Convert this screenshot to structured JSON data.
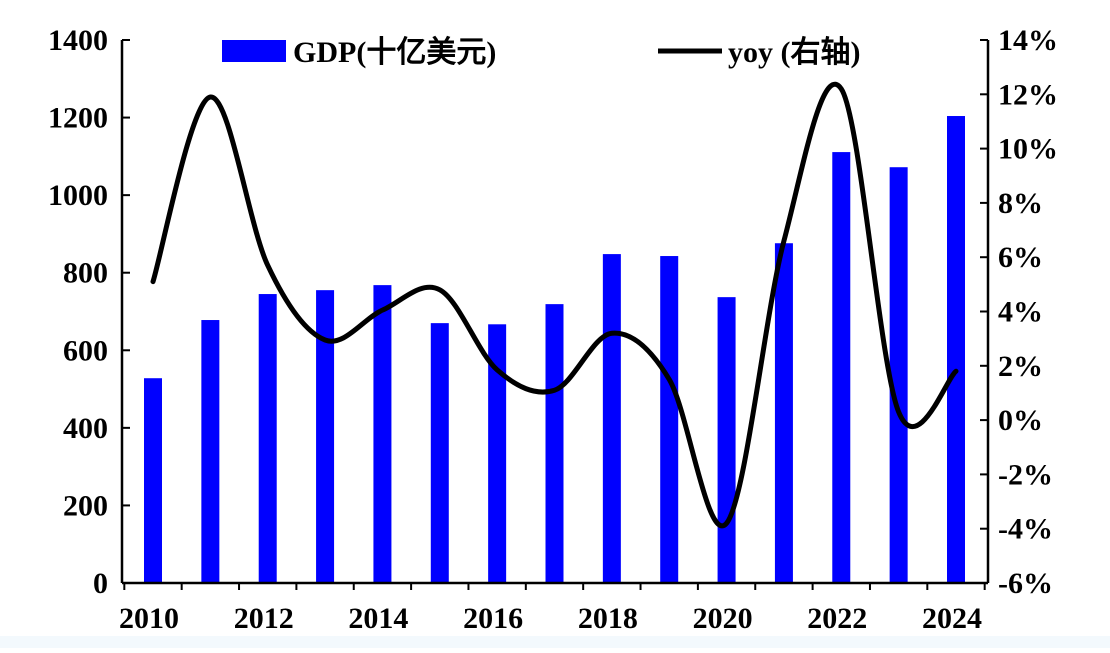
{
  "chart_data": {
    "type": "bar+line",
    "categories": [
      "2010",
      "2011",
      "2012",
      "2013",
      "2014",
      "2015",
      "2016",
      "2017",
      "2018",
      "2019",
      "2020",
      "2021",
      "2022",
      "2023",
      "2024"
    ],
    "x_tick_labels": [
      "2010",
      "2012",
      "2014",
      "2016",
      "2018",
      "2020",
      "2022",
      "2024"
    ],
    "series": [
      {
        "name": "GDP(十亿美元)",
        "type": "bar",
        "axis": "left",
        "color": "#0000ff",
        "values": [
          528,
          678,
          745,
          755,
          768,
          670,
          667,
          719,
          848,
          843,
          737,
          876,
          1111,
          1072,
          1204
        ]
      },
      {
        "name": "yoy (右轴)",
        "type": "line",
        "axis": "right",
        "color": "#000000",
        "smooth": true,
        "values": [
          5.1,
          11.9,
          5.7,
          2.95,
          4.05,
          4.8,
          1.85,
          1.1,
          3.2,
          1.5,
          -3.8,
          6.6,
          12.2,
          0.3,
          1.8
        ]
      }
    ],
    "left_axis": {
      "ylim": [
        0,
        1400
      ],
      "ticks": [
        "0",
        "200",
        "400",
        "600",
        "800",
        "1000",
        "1200",
        "1400"
      ]
    },
    "right_axis": {
      "ylim": [
        -6,
        14
      ],
      "unit": "%",
      "ticks": [
        "-6%",
        "-4%",
        "-2%",
        "0%",
        "2%",
        "4%",
        "6%",
        "8%",
        "10%",
        "12%",
        "14%"
      ]
    },
    "legend": "top",
    "grid": false
  }
}
